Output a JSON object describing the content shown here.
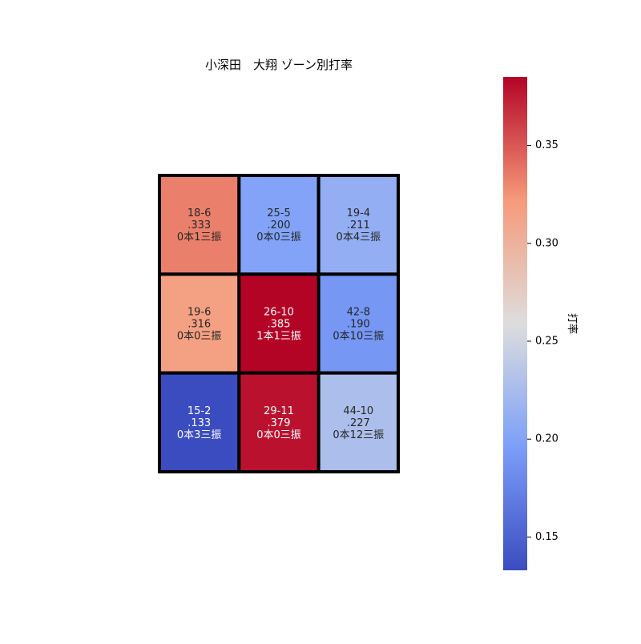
{
  "chart_data": {
    "type": "heatmap",
    "title": "小深田　大翔 ゾーン別打率",
    "rows": 3,
    "cols": 3,
    "cells": [
      [
        {
          "record": "18-6",
          "avg": ".333",
          "detail": "0本1三振",
          "value": 0.333
        },
        {
          "record": "25-5",
          "avg": ".200",
          "detail": "0本0三振",
          "value": 0.2
        },
        {
          "record": "19-4",
          "avg": ".211",
          "detail": "0本4三振",
          "value": 0.211
        }
      ],
      [
        {
          "record": "19-6",
          "avg": ".316",
          "detail": "0本0三振",
          "value": 0.316
        },
        {
          "record": "26-10",
          "avg": ".385",
          "detail": "1本1三振",
          "value": 0.385
        },
        {
          "record": "42-8",
          "avg": ".190",
          "detail": "0本10三振",
          "value": 0.19
        }
      ],
      [
        {
          "record": "15-2",
          "avg": ".133",
          "detail": "0本3三振",
          "value": 0.133
        },
        {
          "record": "29-11",
          "avg": ".379",
          "detail": "0本0三振",
          "value": 0.379
        },
        {
          "record": "44-10",
          "avg": ".227",
          "detail": "0本12三振",
          "value": 0.227
        }
      ]
    ],
    "colorbar": {
      "label": "打率",
      "vmin": 0.133,
      "vmax": 0.385,
      "ticks": [
        0.15,
        0.2,
        0.25,
        0.3,
        0.35
      ],
      "tick_labels": [
        "0.15",
        "0.20",
        "0.25",
        "0.30",
        "0.35"
      ],
      "colormap": "coolwarm"
    },
    "grid_line_color": "#000000"
  }
}
